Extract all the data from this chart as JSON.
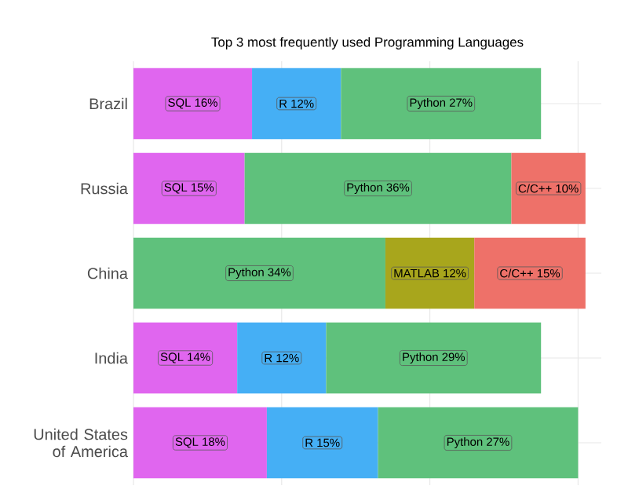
{
  "chart_data": {
    "type": "bar",
    "orientation": "horizontal",
    "stacked": true,
    "title": "Top 3 most frequently used Programming Languages",
    "categories": [
      "Brazil",
      "Russia",
      "China",
      "India",
      "United States of America"
    ],
    "series": [
      {
        "color": "#e066ef",
        "values": [
          16,
          15,
          null,
          14,
          18
        ],
        "value_labels": [
          "SQL 16%",
          "SQL 15%",
          null,
          "SQL 14%",
          "SQL 18%"
        ]
      },
      {
        "color": "#45aff5",
        "values": [
          12,
          null,
          null,
          12,
          15
        ],
        "value_labels": [
          "R 12%",
          null,
          null,
          "R 12%",
          "R 15%"
        ]
      },
      {
        "color": "#5fc17c",
        "values": [
          27,
          36,
          34,
          29,
          27
        ],
        "value_labels": [
          "Python 27%",
          "Python 36%",
          "Python 34%",
          "Python 29%",
          "Python 27%"
        ]
      },
      {
        "color": "#a8a61c",
        "values": [
          null,
          null,
          12,
          null,
          null
        ],
        "value_labels": [
          null,
          null,
          "MATLAB 12%",
          null,
          null
        ]
      },
      {
        "color": "#ee7169",
        "values": [
          null,
          10,
          15,
          null,
          null
        ],
        "value_labels": [
          null,
          "C/C++ 10%",
          "C/C++ 15%",
          null,
          null
        ]
      }
    ],
    "xticks": [
      {
        "value": 0,
        "label": null
      },
      {
        "value": 20,
        "label": null
      },
      {
        "value": 40,
        "label": null
      },
      {
        "value": 60,
        "label": null
      }
    ],
    "tick_labels": "y",
    "grid": true
  }
}
